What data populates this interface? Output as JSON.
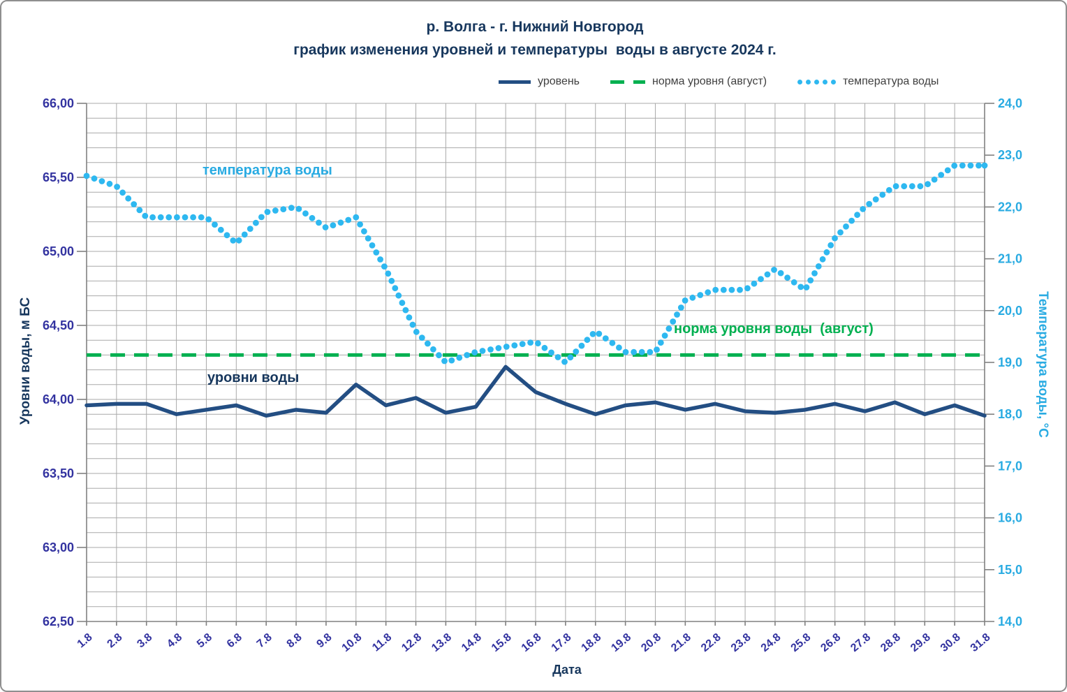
{
  "title": {
    "line1": "р. Волга - г. Нижний Новгород",
    "line2": "график изменения уровней и температуры  воды в августе 2024 г."
  },
  "legend": {
    "items": [
      {
        "label": "уровень",
        "style": "solid-line"
      },
      {
        "label": "норма уровня (август)",
        "style": "dashed-line"
      },
      {
        "label": "температура воды",
        "style": "dotted-line"
      }
    ]
  },
  "annotations": {
    "temperature": "температура воды",
    "norm": "норма уровня воды  (август)",
    "levels": "уровни воды"
  },
  "colors": {
    "title": "#17375d",
    "level_line": "#234e83",
    "norm_line": "#00b050",
    "temp_dots": "#2eb8f0",
    "left_ticks": "#3333a0",
    "right_ticks": "#29abe2",
    "grid": "#a9a9a9",
    "axis": "#808080",
    "legend_text": "#404040"
  },
  "chart_data": {
    "type": "line",
    "title": "р. Волга - г. Нижний Новгород — график изменения уровней и температуры воды в августе 2024 г.",
    "x_axis": {
      "title": "Дата"
    },
    "x_labels": [
      "1.8",
      "2.8",
      "3.8",
      "4.8",
      "5.8",
      "6.8",
      "7.8",
      "8.8",
      "9.8",
      "10.8",
      "11.8",
      "12.8",
      "13.8",
      "14.8",
      "15.8",
      "16.8",
      "17.8",
      "18.8",
      "19.8",
      "20.8",
      "21.8",
      "22.8",
      "23.8",
      "24.8",
      "25.8",
      "26.8",
      "27.8",
      "28.8",
      "29.8",
      "30.8",
      "31.8"
    ],
    "left_axis": {
      "title": "Уровни воды, м БС",
      "min": 62.5,
      "max": 66.0,
      "major_step": 0.5,
      "minor_step": 0.1,
      "tick_labels": [
        "66,00",
        "65,50",
        "65,00",
        "64,50",
        "64,00",
        "63,50",
        "63,00",
        "62,50"
      ]
    },
    "right_axis": {
      "title": "Температура воды, °С",
      "min": 14.0,
      "max": 24.0,
      "major_step": 1.0,
      "tick_labels": [
        "24,0",
        "23,0",
        "22,0",
        "21,0",
        "20,0",
        "19,0",
        "18,0",
        "17,0",
        "16,0",
        "15,0",
        "14,0"
      ]
    },
    "grid": {
      "vertical": "every-day",
      "horizontal": "every-0.1-m"
    },
    "legend_position": "top",
    "series": [
      {
        "name": "уровень",
        "axis": "left",
        "style": "solid",
        "values": [
          63.96,
          63.97,
          63.97,
          63.9,
          63.93,
          63.96,
          63.89,
          63.93,
          63.91,
          64.1,
          63.96,
          64.01,
          63.91,
          63.95,
          64.22,
          64.05,
          63.97,
          63.9,
          63.96,
          63.98,
          63.93,
          63.97,
          63.92,
          63.91,
          63.93,
          63.97,
          63.92,
          63.98,
          63.9,
          63.96,
          63.89
        ]
      },
      {
        "name": "норма уровня (август)",
        "axis": "left",
        "style": "dashed",
        "constant": 64.3
      },
      {
        "name": "температура воды",
        "axis": "right",
        "style": "dotted",
        "values": [
          22.6,
          22.4,
          21.8,
          21.8,
          21.8,
          21.3,
          21.9,
          22.0,
          21.6,
          21.8,
          20.8,
          19.6,
          19.0,
          19.2,
          19.3,
          19.4,
          19.0,
          19.6,
          19.2,
          19.2,
          20.2,
          20.4,
          20.4,
          20.8,
          20.4,
          21.4,
          22.0,
          22.4,
          22.4,
          22.8,
          22.8
        ]
      }
    ]
  }
}
